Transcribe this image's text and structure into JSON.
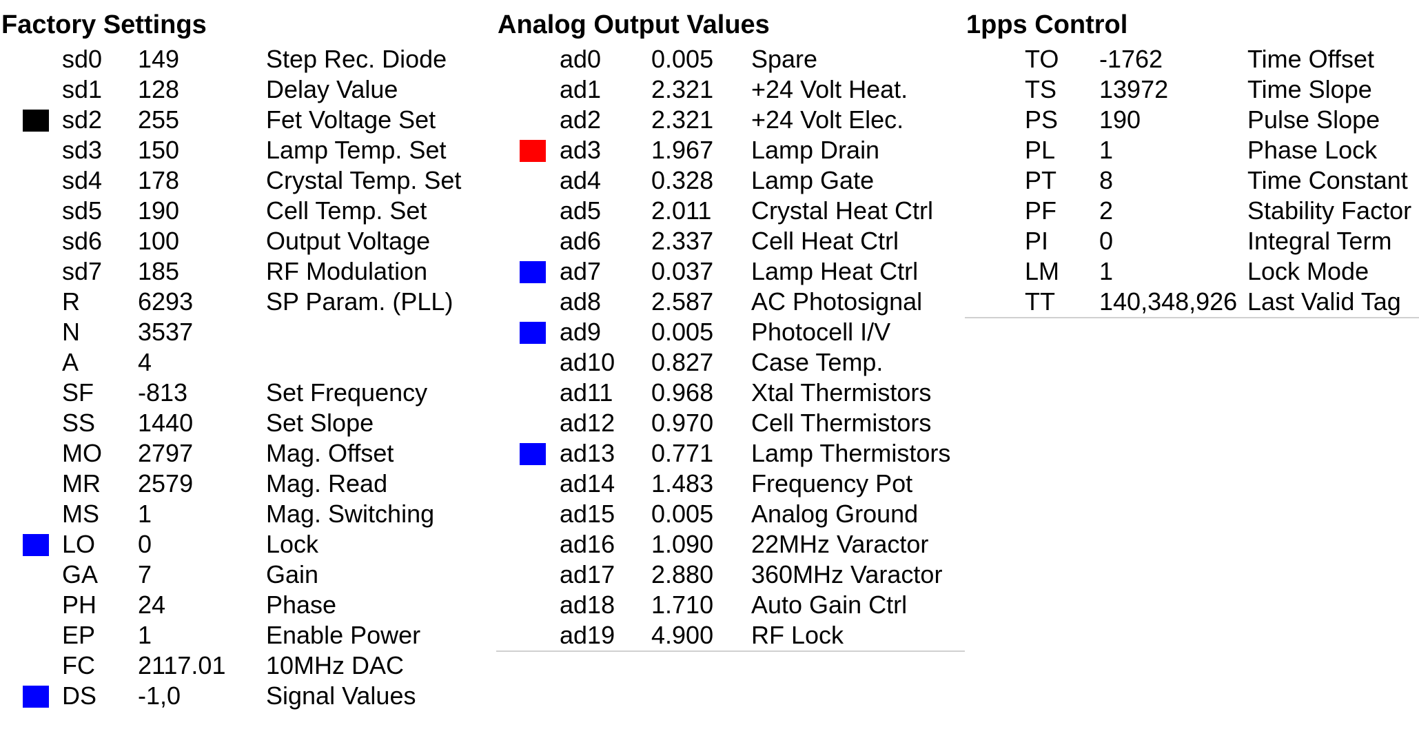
{
  "colors": {
    "black": "#000000",
    "red": "#ff0000",
    "blue": "#0000ff"
  },
  "factory": {
    "title": "Factory Settings",
    "rows": [
      {
        "code": "sd0",
        "value": "149",
        "desc": "Step Rec. Diode",
        "indicator": ""
      },
      {
        "code": "sd1",
        "value": "128",
        "desc": "Delay Value",
        "indicator": ""
      },
      {
        "code": "sd2",
        "value": "255",
        "desc": "Fet Voltage Set",
        "indicator": "#000000"
      },
      {
        "code": "sd3",
        "value": "150",
        "desc": "Lamp Temp. Set",
        "indicator": ""
      },
      {
        "code": "sd4",
        "value": "178",
        "desc": "Crystal Temp. Set",
        "indicator": ""
      },
      {
        "code": "sd5",
        "value": "190",
        "desc": "Cell Temp. Set",
        "indicator": ""
      },
      {
        "code": "sd6",
        "value": "100",
        "desc": "Output Voltage",
        "indicator": ""
      },
      {
        "code": "sd7",
        "value": "185",
        "desc": "RF Modulation",
        "indicator": ""
      },
      {
        "code": "R",
        "value": "6293",
        "desc": "SP Param. (PLL)",
        "indicator": ""
      },
      {
        "code": "N",
        "value": "3537",
        "desc": "",
        "indicator": ""
      },
      {
        "code": "A",
        "value": "4",
        "desc": "",
        "indicator": ""
      },
      {
        "code": "SF",
        "value": "-813",
        "desc": "Set Frequency",
        "indicator": ""
      },
      {
        "code": "SS",
        "value": "1440",
        "desc": "Set Slope",
        "indicator": ""
      },
      {
        "code": "MO",
        "value": "2797",
        "desc": "Mag. Offset",
        "indicator": ""
      },
      {
        "code": "MR",
        "value": "2579",
        "desc": "Mag. Read",
        "indicator": ""
      },
      {
        "code": "MS",
        "value": "1",
        "desc": "Mag. Switching",
        "indicator": ""
      },
      {
        "code": "LO",
        "value": "0",
        "desc": "Lock",
        "indicator": "#0000ff"
      },
      {
        "code": "GA",
        "value": "7",
        "desc": "Gain",
        "indicator": ""
      },
      {
        "code": "PH",
        "value": "24",
        "desc": "Phase",
        "indicator": ""
      },
      {
        "code": "EP",
        "value": "1",
        "desc": "Enable Power",
        "indicator": ""
      },
      {
        "code": "FC",
        "value": "2117.01",
        "desc": "10MHz DAC",
        "indicator": ""
      },
      {
        "code": "DS",
        "value": "-1,0",
        "desc": "Signal Values",
        "indicator": "#0000ff"
      }
    ]
  },
  "analog": {
    "title": "Analog Output Values",
    "rows": [
      {
        "code": "ad0",
        "value": "0.005",
        "desc": "Spare",
        "indicator": ""
      },
      {
        "code": "ad1",
        "value": "2.321",
        "desc": "+24 Volt Heat.",
        "indicator": ""
      },
      {
        "code": "ad2",
        "value": "2.321",
        "desc": "+24 Volt Elec.",
        "indicator": ""
      },
      {
        "code": "ad3",
        "value": "1.967",
        "desc": "Lamp Drain",
        "indicator": "#ff0000"
      },
      {
        "code": "ad4",
        "value": "0.328",
        "desc": "Lamp Gate",
        "indicator": ""
      },
      {
        "code": "ad5",
        "value": "2.011",
        "desc": "Crystal Heat Ctrl",
        "indicator": ""
      },
      {
        "code": "ad6",
        "value": "2.337",
        "desc": "Cell Heat Ctrl",
        "indicator": ""
      },
      {
        "code": "ad7",
        "value": "0.037",
        "desc": "Lamp Heat Ctrl",
        "indicator": "#0000ff"
      },
      {
        "code": "ad8",
        "value": "2.587",
        "desc": "AC Photosignal",
        "indicator": ""
      },
      {
        "code": "ad9",
        "value": "0.005",
        "desc": "Photocell I/V",
        "indicator": "#0000ff"
      },
      {
        "code": "ad10",
        "value": "0.827",
        "desc": "Case Temp.",
        "indicator": ""
      },
      {
        "code": "ad11",
        "value": "0.968",
        "desc": "Xtal Thermistors",
        "indicator": ""
      },
      {
        "code": "ad12",
        "value": "0.970",
        "desc": "Cell Thermistors",
        "indicator": ""
      },
      {
        "code": "ad13",
        "value": "0.771",
        "desc": "Lamp Thermistors",
        "indicator": "#0000ff"
      },
      {
        "code": "ad14",
        "value": "1.483",
        "desc": "Frequency Pot",
        "indicator": ""
      },
      {
        "code": "ad15",
        "value": "0.005",
        "desc": "Analog Ground",
        "indicator": ""
      },
      {
        "code": "ad16",
        "value": "1.090",
        "desc": "22MHz Varactor",
        "indicator": ""
      },
      {
        "code": "ad17",
        "value": "2.880",
        "desc": "360MHz Varactor",
        "indicator": ""
      },
      {
        "code": "ad18",
        "value": "1.710",
        "desc": "Auto Gain Ctrl",
        "indicator": ""
      },
      {
        "code": "ad19",
        "value": "4.900",
        "desc": "RF Lock",
        "indicator": ""
      }
    ]
  },
  "pps": {
    "title": "1pps Control",
    "rows": [
      {
        "code": "TO",
        "value": "-1762",
        "desc": "Time Offset",
        "indicator": ""
      },
      {
        "code": "TS",
        "value": "13972",
        "desc": "Time Slope",
        "indicator": ""
      },
      {
        "code": "PS",
        "value": "190",
        "desc": "Pulse Slope",
        "indicator": ""
      },
      {
        "code": "PL",
        "value": "1",
        "desc": "Phase Lock",
        "indicator": ""
      },
      {
        "code": "PT",
        "value": "8",
        "desc": "Time Constant",
        "indicator": ""
      },
      {
        "code": "PF",
        "value": "2",
        "desc": "Stability Factor",
        "indicator": ""
      },
      {
        "code": "PI",
        "value": "0",
        "desc": "Integral Term",
        "indicator": ""
      },
      {
        "code": "LM",
        "value": "1",
        "desc": "Lock Mode",
        "indicator": ""
      },
      {
        "code": "TT",
        "value": "140,348,926",
        "desc": "Last Valid Tag",
        "indicator": ""
      }
    ]
  }
}
